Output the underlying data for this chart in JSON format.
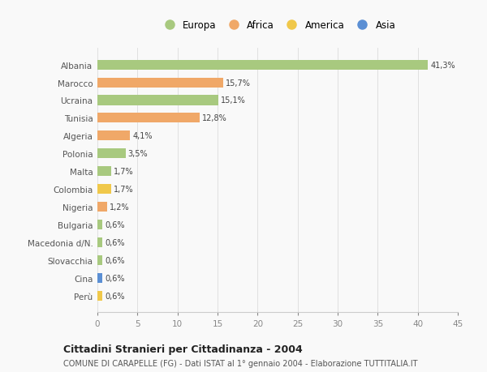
{
  "categories": [
    "Albania",
    "Marocco",
    "Ucraina",
    "Tunisia",
    "Algeria",
    "Polonia",
    "Malta",
    "Colombia",
    "Nigeria",
    "Bulgaria",
    "Macedonia d/N.",
    "Slovacchia",
    "Cina",
    "Perù"
  ],
  "values": [
    41.3,
    15.7,
    15.1,
    12.8,
    4.1,
    3.5,
    1.7,
    1.7,
    1.2,
    0.6,
    0.6,
    0.6,
    0.6,
    0.6
  ],
  "labels": [
    "41,3%",
    "15,7%",
    "15,1%",
    "12,8%",
    "4,1%",
    "3,5%",
    "1,7%",
    "1,7%",
    "1,2%",
    "0,6%",
    "0,6%",
    "0,6%",
    "0,6%",
    "0,6%"
  ],
  "continent": [
    "Europa",
    "Africa",
    "Europa",
    "Africa",
    "Africa",
    "Europa",
    "Europa",
    "America",
    "Africa",
    "Europa",
    "Europa",
    "Europa",
    "Asia",
    "America"
  ],
  "colors": {
    "Europa": "#a8c97f",
    "Africa": "#f0a868",
    "America": "#f0c84a",
    "Asia": "#5b8fd4"
  },
  "legend_order": [
    "Europa",
    "Africa",
    "America",
    "Asia"
  ],
  "xlim": [
    0,
    45
  ],
  "xticks": [
    0,
    5,
    10,
    15,
    20,
    25,
    30,
    35,
    40,
    45
  ],
  "title": "Cittadini Stranieri per Cittadinanza - 2004",
  "subtitle": "COMUNE DI CARAPELLE (FG) - Dati ISTAT al 1° gennaio 2004 - Elaborazione TUTTITALIA.IT",
  "background_color": "#f9f9f9",
  "grid_color": "#e0e0e0",
  "bar_height": 0.55
}
